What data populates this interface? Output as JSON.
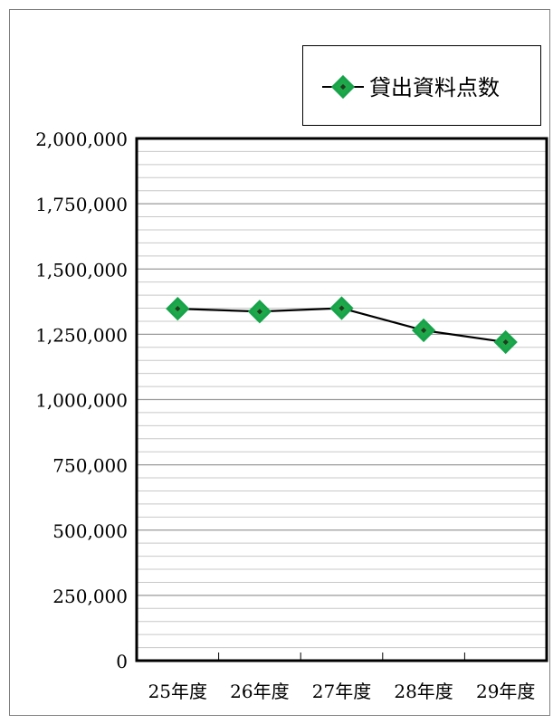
{
  "chart_data": {
    "type": "line",
    "title": "",
    "xlabel": "",
    "ylabel": "",
    "categories": [
      "25年度",
      "26年度",
      "27年度",
      "28年度",
      "29年度"
    ],
    "series": [
      {
        "name": "貸出資料点数",
        "values": [
          1348000,
          1337000,
          1350000,
          1265000,
          1220000
        ],
        "color": "#000000",
        "marker": "diamond",
        "marker_fill": "#1fa84a",
        "marker_edge": "#17a34a",
        "marker_center": "#1f3d1f"
      }
    ],
    "ylim": [
      0,
      2000000
    ],
    "yticks": [
      0,
      250000,
      500000,
      750000,
      1000000,
      1250000,
      1500000,
      1750000,
      2000000
    ],
    "ytick_labels": [
      "0",
      "250,000",
      "500,000",
      "750,000",
      "1,000,000",
      "1,250,000",
      "1,500,000",
      "1,750,000",
      "2,000,000"
    ],
    "minor_grid_step": 50000,
    "grid": true,
    "legend_position": "top-right",
    "colors": {
      "plot_border": "#000000",
      "major_grid": "#9a9a9a",
      "minor_grid": "#c8c8c8",
      "frame": "#808080"
    }
  }
}
